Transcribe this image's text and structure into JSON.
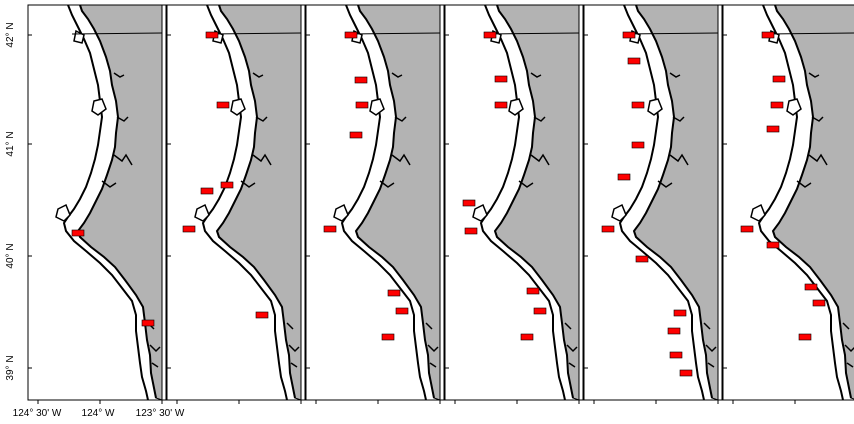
{
  "figure": {
    "panel_count": 6,
    "colors": {
      "land": "#b3b3b3",
      "water": "#ffffff",
      "coast_line": "#000000",
      "highlight": "#ff0000"
    }
  },
  "axes": {
    "lat_labels": [
      "42° N",
      "41° N",
      "40° N",
      "39° N"
    ],
    "lon_labels": [
      "124° 30' W",
      "124° W",
      "123° 30' W"
    ]
  },
  "panels": [
    {
      "id": "panel-1",
      "highlight_count": 2
    },
    {
      "id": "panel-2",
      "highlight_count": 6
    },
    {
      "id": "panel-3",
      "highlight_count": 8
    },
    {
      "id": "panel-4",
      "highlight_count": 8
    },
    {
      "id": "panel-5",
      "highlight_count": 11
    },
    {
      "id": "panel-6",
      "highlight_count": 9
    }
  ]
}
